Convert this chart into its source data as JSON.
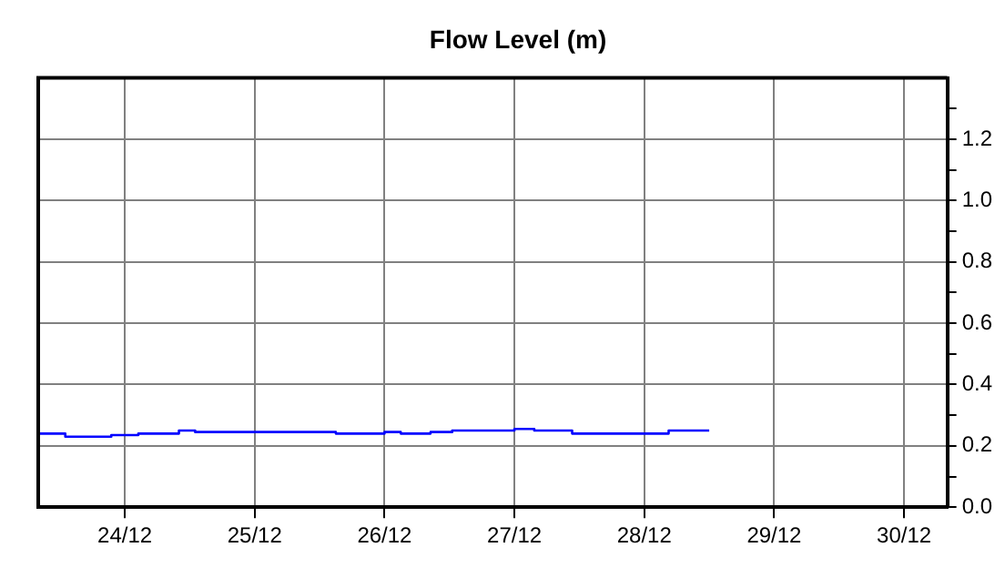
{
  "chart_data": {
    "type": "step",
    "title": "Flow Level (m)",
    "x": [
      "--12-23T08:00",
      "--12-23T13:00",
      "--12-23T21:30",
      "--12-24T02:30",
      "--12-24T10:00",
      "--12-24T13:00",
      "--12-25T15:00",
      "--12-26T00:00",
      "--12-26T03:00",
      "--12-26T08:30",
      "--12-26T12:30",
      "--12-27T00:00",
      "--12-27T03:40",
      "--12-27T10:40",
      "--12-28T04:30",
      "--12-28T07:40",
      "--12-28T12:00"
    ],
    "series": [
      {
        "color": "#0000ff",
        "values": [
          0.23,
          0.24,
          0.23,
          0.235,
          0.24,
          0.25,
          0.245,
          0.24,
          0.245,
          0.24,
          0.245,
          0.25,
          0.255,
          0.25,
          0.24,
          0.25,
          0.25
        ]
      }
    ],
    "xlim": [
      "--12-23T08:00",
      "--12-30T08:00"
    ],
    "xticks": [
      {
        "value": "--12-24",
        "label": "24/12"
      },
      {
        "value": "--12-25",
        "label": "25/12"
      },
      {
        "value": "--12-26",
        "label": "26/12"
      },
      {
        "value": "--12-27",
        "label": "27/12"
      },
      {
        "value": "--12-28",
        "label": "28/12"
      },
      {
        "value": "--12-29",
        "label": "29/12"
      },
      {
        "value": "--12-30",
        "label": "30/12"
      }
    ],
    "ylim": [
      0,
      1.4
    ],
    "yticks": [
      {
        "value": 0,
        "label": "0.0"
      },
      {
        "value": 0.1,
        "label": null
      },
      {
        "value": 0.2,
        "label": "0.2"
      },
      {
        "value": 0.3,
        "label": null
      },
      {
        "value": 0.4,
        "label": "0.4"
      },
      {
        "value": 0.5,
        "label": null
      },
      {
        "value": 0.6,
        "label": "0.6"
      },
      {
        "value": 0.7,
        "label": null
      },
      {
        "value": 0.8,
        "label": "0.8"
      },
      {
        "value": 0.9,
        "label": null
      },
      {
        "value": 1.0,
        "label": "1.0"
      },
      {
        "value": 1.1,
        "label": null
      },
      {
        "value": 1.2,
        "label": "1.2"
      },
      {
        "value": 1.3,
        "label": null
      }
    ],
    "grid": true,
    "legend": false,
    "marker": "none",
    "line_style": "solid"
  }
}
